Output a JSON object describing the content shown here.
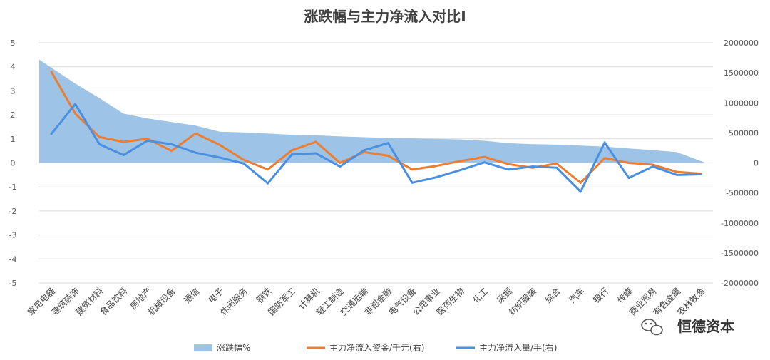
{
  "chart_data": {
    "type": "line",
    "title": "涨跌幅与主力净流入对比I",
    "categories": [
      "家用电器",
      "建筑装饰",
      "建筑材料",
      "食品饮料",
      "房地产",
      "机械设备",
      "通信",
      "电子",
      "休闲服务",
      "钢铁",
      "国防军工",
      "计算机",
      "轻工制造",
      "交通运输",
      "非银金融",
      "电气设备",
      "公用事业",
      "医药生物",
      "化工",
      "采掘",
      "纺织服装",
      "综合",
      "汽车",
      "银行",
      "传媒",
      "商业贸易",
      "有色金属",
      "农林牧渔"
    ],
    "y_left": {
      "ylim": [
        -5,
        5
      ],
      "ticks": [
        "-5",
        "-4",
        "-3",
        "-2",
        "-1",
        "0",
        "1",
        "2",
        "3",
        "4",
        "5"
      ]
    },
    "y_right": {
      "ylim": [
        -2000000,
        2000000
      ],
      "ticks": [
        "-2000000",
        "-1500000",
        "-1000000",
        "-500000",
        "0",
        "500000",
        "1000000",
        "1500000",
        "2000000"
      ]
    },
    "series": [
      {
        "name": "涨跌幅%",
        "kind": "area",
        "axis": "left",
        "color": "#9dc3e6",
        "values": [
          4.3,
          3.3,
          2.7,
          2.05,
          1.85,
          1.7,
          1.55,
          1.3,
          1.27,
          1.22,
          1.17,
          1.15,
          1.1,
          1.07,
          1.04,
          1.02,
          1.0,
          0.97,
          0.92,
          0.82,
          0.78,
          0.76,
          0.72,
          0.68,
          0.6,
          0.53,
          0.45,
          0.0
        ]
      },
      {
        "name": "主力净流入资金/千元(右)",
        "kind": "line",
        "axis": "right",
        "color": "#ed7d31",
        "values": [
          1520000,
          820000,
          430000,
          350000,
          400000,
          200000,
          490000,
          300000,
          50000,
          -110000,
          210000,
          350000,
          0,
          180000,
          120000,
          -110000,
          -50000,
          30000,
          100000,
          -20000,
          -80000,
          -10000,
          -330000,
          80000,
          0,
          -30000,
          -150000,
          -180000
        ]
      },
      {
        "name": "主力净流入量/手(右)",
        "kind": "line",
        "axis": "right",
        "color": "#4a90e2",
        "values": [
          480000,
          980000,
          310000,
          130000,
          370000,
          310000,
          170000,
          90000,
          -10000,
          -340000,
          140000,
          160000,
          -60000,
          210000,
          330000,
          -330000,
          -240000,
          -120000,
          10000,
          -110000,
          -60000,
          -80000,
          -480000,
          340000,
          -250000,
          -60000,
          -200000,
          -190000
        ]
      }
    ],
    "legend_position": "bottom"
  },
  "watermark": {
    "text": "恒德资本",
    "icon": "wechat-icon"
  }
}
